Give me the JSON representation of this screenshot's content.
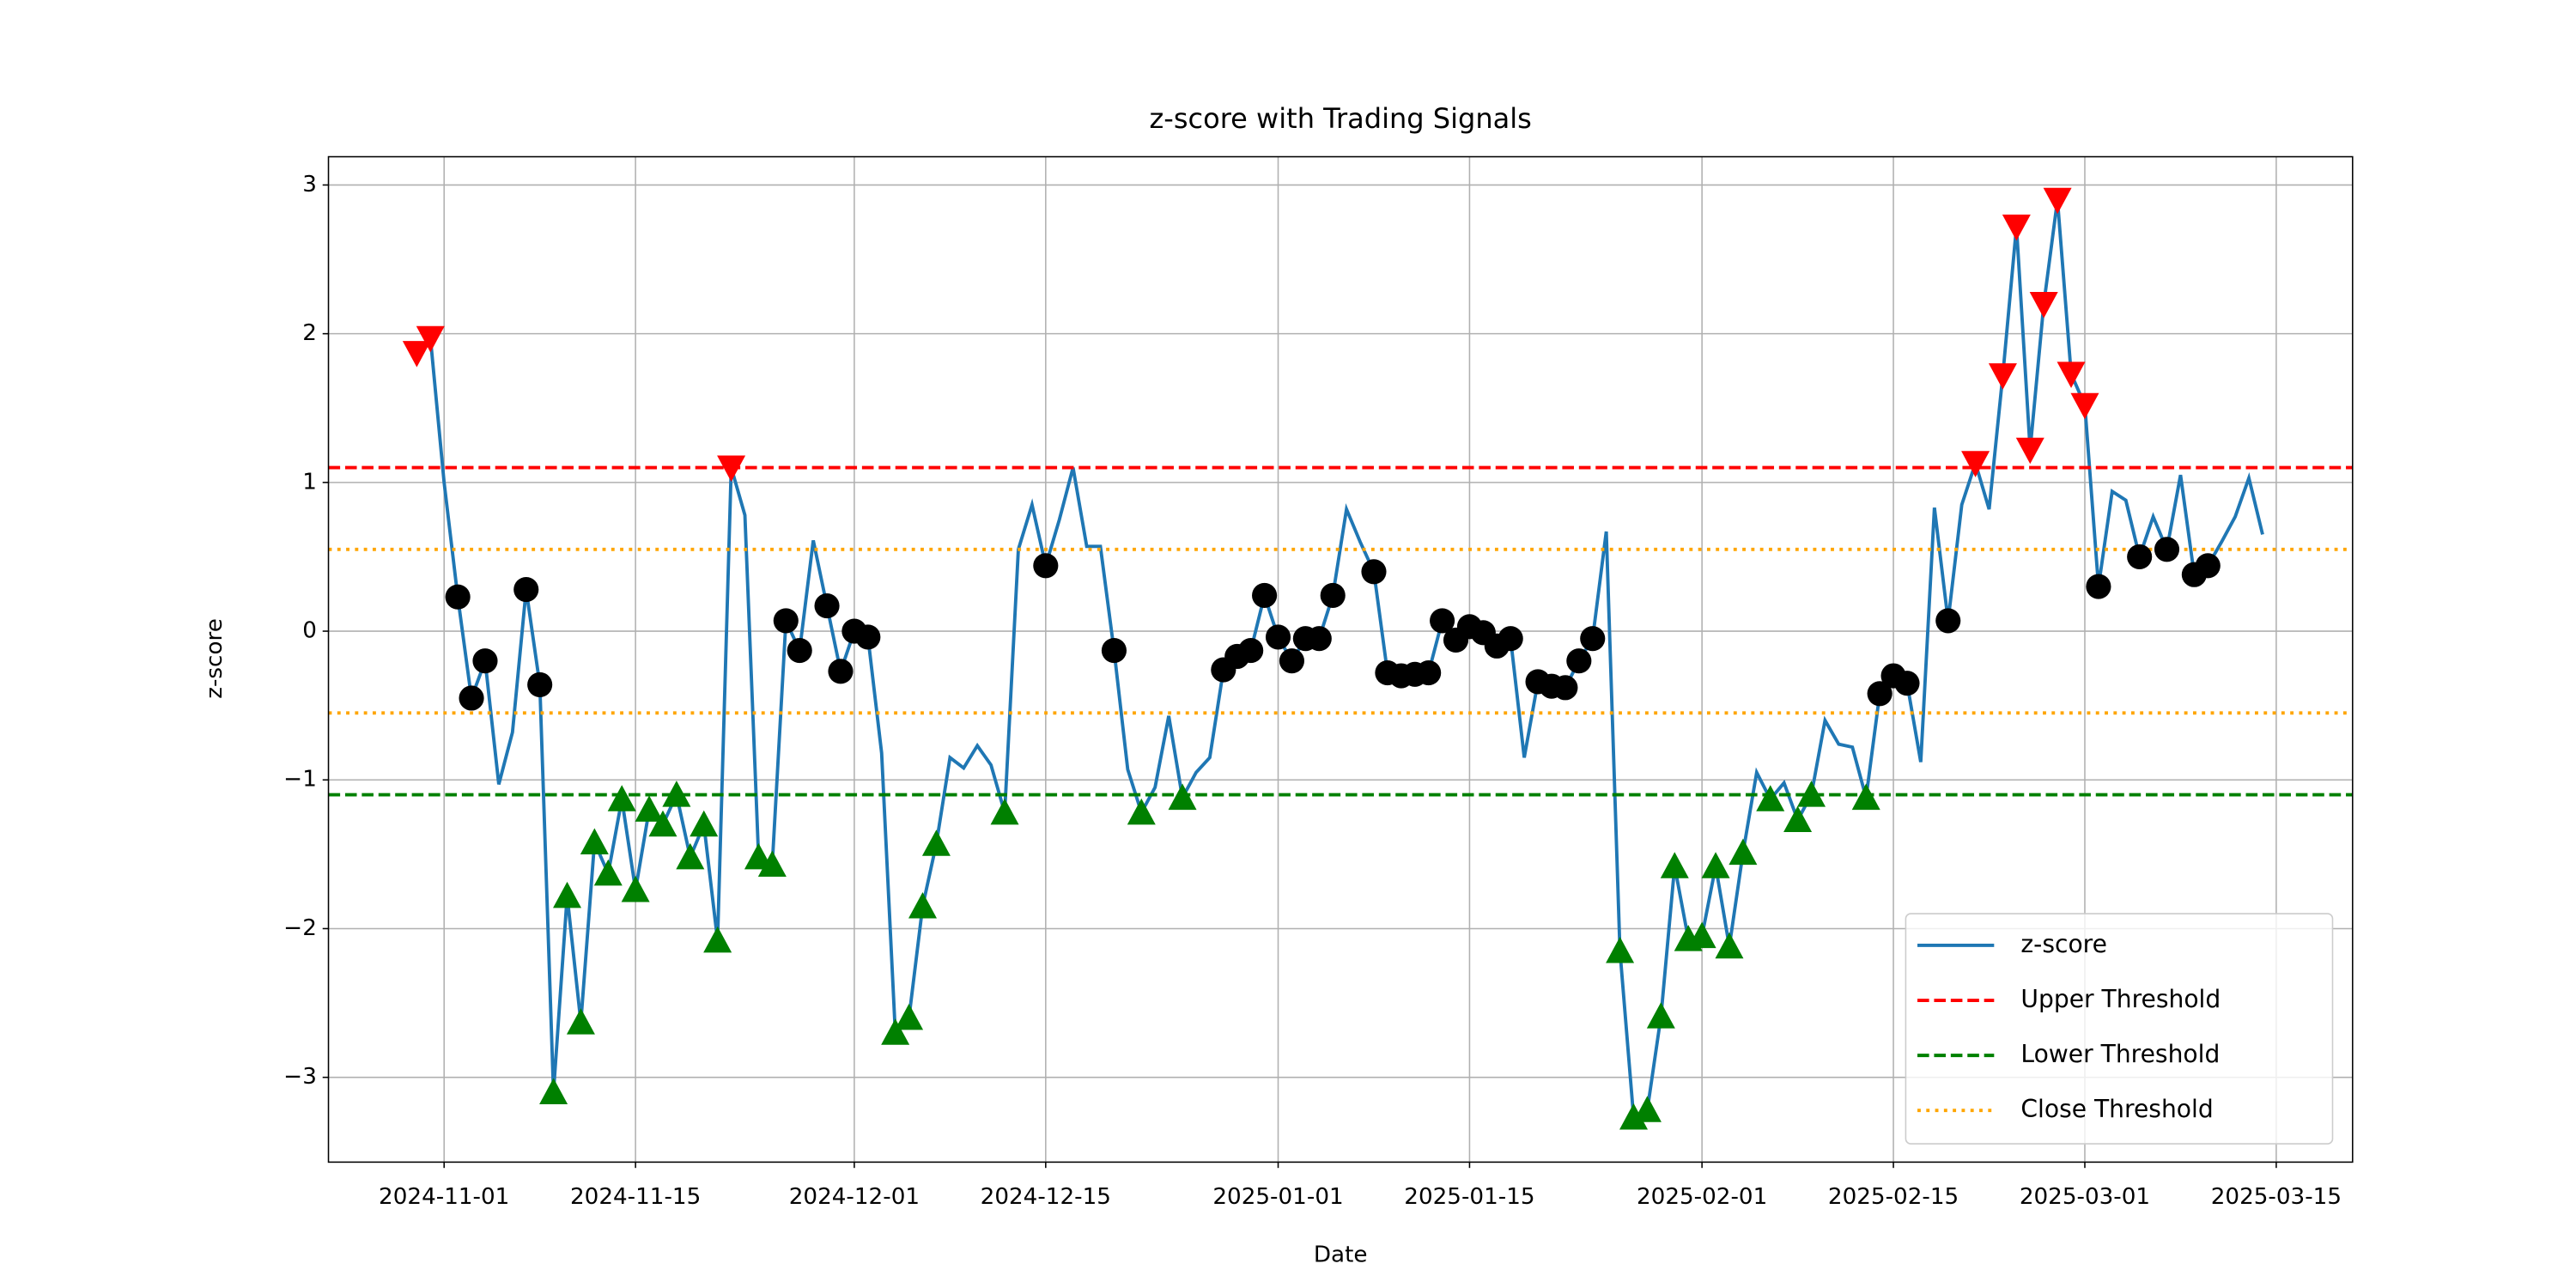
{
  "chart_data": {
    "type": "line",
    "title": "z-score with Trading Signals",
    "xlabel": "Date",
    "ylabel": "z-score",
    "x": [
      "2024-10-30",
      "2024-10-31",
      "2024-11-01",
      "2024-11-02",
      "2024-11-03",
      "2024-11-04",
      "2024-11-05",
      "2024-11-06",
      "2024-11-07",
      "2024-11-08",
      "2024-11-09",
      "2024-11-10",
      "2024-11-11",
      "2024-11-12",
      "2024-11-13",
      "2024-11-14",
      "2024-11-15",
      "2024-11-16",
      "2024-11-17",
      "2024-11-18",
      "2024-11-19",
      "2024-11-20",
      "2024-11-21",
      "2024-11-22",
      "2024-11-23",
      "2024-11-24",
      "2024-11-25",
      "2024-11-26",
      "2024-11-27",
      "2024-11-28",
      "2024-11-29",
      "2024-11-30",
      "2024-12-01",
      "2024-12-02",
      "2024-12-03",
      "2024-12-04",
      "2024-12-05",
      "2024-12-06",
      "2024-12-07",
      "2024-12-08",
      "2024-12-09",
      "2024-12-10",
      "2024-12-11",
      "2024-12-12",
      "2024-12-13",
      "2024-12-14",
      "2024-12-15",
      "2024-12-16",
      "2024-12-17",
      "2024-12-18",
      "2024-12-19",
      "2024-12-20",
      "2024-12-21",
      "2024-12-22",
      "2024-12-23",
      "2024-12-24",
      "2024-12-25",
      "2024-12-26",
      "2024-12-27",
      "2024-12-28",
      "2024-12-29",
      "2024-12-30",
      "2024-12-31",
      "2025-01-01",
      "2025-01-02",
      "2025-01-03",
      "2025-01-04",
      "2025-01-05",
      "2025-01-06",
      "2025-01-07",
      "2025-01-08",
      "2025-01-09",
      "2025-01-10",
      "2025-01-11",
      "2025-01-12",
      "2025-01-13",
      "2025-01-14",
      "2025-01-15",
      "2025-01-16",
      "2025-01-17",
      "2025-01-18",
      "2025-01-19",
      "2025-01-20",
      "2025-01-21",
      "2025-01-22",
      "2025-01-23",
      "2025-01-24",
      "2025-01-25",
      "2025-01-26",
      "2025-01-27",
      "2025-01-28",
      "2025-01-29",
      "2025-01-30",
      "2025-01-31",
      "2025-02-01",
      "2025-02-02",
      "2025-02-03",
      "2025-02-04",
      "2025-02-05",
      "2025-02-06",
      "2025-02-07",
      "2025-02-08",
      "2025-02-09",
      "2025-02-10",
      "2025-02-11",
      "2025-02-12",
      "2025-02-13",
      "2025-02-14",
      "2025-02-15",
      "2025-02-16",
      "2025-02-17",
      "2025-02-18",
      "2025-02-19",
      "2025-02-20",
      "2025-02-21",
      "2025-02-22",
      "2025-02-23",
      "2025-02-24",
      "2025-02-25",
      "2025-02-26",
      "2025-02-27",
      "2025-02-28",
      "2025-03-01",
      "2025-03-02",
      "2025-03-03",
      "2025-03-04",
      "2025-03-05",
      "2025-03-06",
      "2025-03-07",
      "2025-03-08",
      "2025-03-09",
      "2025-03-10",
      "2025-03-11",
      "2025-03-12",
      "2025-03-13",
      "2025-03-14"
    ],
    "series": [
      {
        "name": "z-score",
        "color": "#1f77b4",
        "values": [
          1.87,
          1.97,
          1.0,
          0.23,
          -0.45,
          -0.2,
          -1.03,
          -0.68,
          0.28,
          -0.36,
          -3.1,
          -1.78,
          -2.63,
          -1.42,
          -1.63,
          -1.13,
          -1.74,
          -1.2,
          -1.3,
          -1.1,
          -1.52,
          -1.3,
          -2.08,
          1.1,
          0.78,
          -1.52,
          -1.57,
          0.07,
          -0.13,
          0.61,
          0.17,
          -0.27,
          0.0,
          -0.04,
          -0.82,
          -2.7,
          -2.6,
          -1.85,
          -1.43,
          -0.85,
          -0.92,
          -0.77,
          -0.9,
          -1.22,
          0.55,
          0.85,
          0.44,
          0.75,
          1.1,
          0.57,
          0.57,
          -0.13,
          -0.93,
          -1.22,
          -1.05,
          -0.57,
          -1.12,
          -0.95,
          -0.85,
          -0.26,
          -0.17,
          -0.13,
          0.24,
          -0.04,
          -0.2,
          -0.05,
          -0.05,
          0.24,
          0.82,
          0.6,
          0.4,
          -0.28,
          -0.3,
          -0.29,
          -0.28,
          0.07,
          -0.06,
          0.03,
          -0.01,
          -0.1,
          -0.05,
          -0.85,
          -0.34,
          -0.37,
          -0.38,
          -0.2,
          -0.05,
          0.67,
          -2.15,
          -3.27,
          -3.22,
          -2.59,
          -1.58,
          -2.07,
          -2.05,
          -1.58,
          -2.12,
          -1.49,
          -0.95,
          -1.13,
          -1.02,
          -1.27,
          -1.1,
          -0.6,
          -0.76,
          -0.78,
          -1.12,
          -0.42,
          -0.3,
          -0.35,
          -0.88,
          0.83,
          0.07,
          0.85,
          1.13,
          0.82,
          1.72,
          2.72,
          1.22,
          2.2,
          2.9,
          1.73,
          1.52,
          0.3,
          0.94,
          0.88,
          0.5,
          0.77,
          0.55,
          1.05,
          0.38,
          0.44,
          0.6,
          0.77,
          1.03,
          0.65
        ]
      }
    ],
    "thresholds": [
      {
        "name": "Upper Threshold",
        "value": 1.1,
        "color": "#ff0000",
        "dash": "dashed"
      },
      {
        "name": "Lower Threshold",
        "value": -1.1,
        "color": "#008000",
        "dash": "dashed"
      },
      {
        "name": "Close Threshold",
        "value": 0.55,
        "color": "#ffa500",
        "dash": "dotted"
      },
      {
        "value": -0.55,
        "color": "#ffa500",
        "dash": "dotted"
      }
    ],
    "signals": [
      {
        "marker": "triangle-down",
        "color": "#ff0000",
        "x": [
          "2024-10-30",
          "2024-10-31",
          "2024-11-22",
          "2025-02-21",
          "2025-02-23",
          "2025-02-24",
          "2025-02-25",
          "2025-02-26",
          "2025-02-27",
          "2025-02-28",
          "2025-03-01"
        ],
        "values": [
          1.87,
          1.97,
          1.1,
          1.13,
          1.72,
          2.72,
          1.22,
          2.2,
          2.9,
          1.73,
          1.52
        ]
      },
      {
        "marker": "triangle-up",
        "color": "#008000",
        "x": [
          "2024-11-09",
          "2024-11-10",
          "2024-11-11",
          "2024-11-12",
          "2024-11-13",
          "2024-11-14",
          "2024-11-15",
          "2024-11-16",
          "2024-11-17",
          "2024-11-18",
          "2024-11-19",
          "2024-11-20",
          "2024-11-21",
          "2024-11-24",
          "2024-11-25",
          "2024-12-04",
          "2024-12-05",
          "2024-12-06",
          "2024-12-07",
          "2024-12-12",
          "2024-12-22",
          "2024-12-25",
          "2025-01-26",
          "2025-01-27",
          "2025-01-28",
          "2025-01-29",
          "2025-01-30",
          "2025-01-31",
          "2025-02-01",
          "2025-02-02",
          "2025-02-03",
          "2025-02-04",
          "2025-02-06",
          "2025-02-08",
          "2025-02-09",
          "2025-02-13"
        ],
        "values": [
          -3.1,
          -1.78,
          -2.63,
          -1.42,
          -1.63,
          -1.13,
          -1.74,
          -1.2,
          -1.3,
          -1.1,
          -1.52,
          -1.3,
          -2.08,
          -1.52,
          -1.57,
          -2.7,
          -2.6,
          -1.85,
          -1.43,
          -1.22,
          -1.22,
          -1.12,
          -2.15,
          -3.27,
          -3.22,
          -2.59,
          -1.58,
          -2.07,
          -2.05,
          -1.58,
          -2.12,
          -1.49,
          -1.13,
          -1.27,
          -1.1,
          -1.12
        ]
      },
      {
        "marker": "circle",
        "color": "#000000",
        "x": [
          "2024-11-02",
          "2024-11-03",
          "2024-11-04",
          "2024-11-07",
          "2024-11-08",
          "2024-11-26",
          "2024-11-27",
          "2024-11-29",
          "2024-11-30",
          "2024-12-01",
          "2024-12-02",
          "2024-12-15",
          "2024-12-20",
          "2024-12-28",
          "2024-12-29",
          "2024-12-30",
          "2024-12-31",
          "2025-01-01",
          "2025-01-02",
          "2025-01-03",
          "2025-01-04",
          "2025-01-05",
          "2025-01-08",
          "2025-01-09",
          "2025-01-10",
          "2025-01-11",
          "2025-01-12",
          "2025-01-13",
          "2025-01-14",
          "2025-01-15",
          "2025-01-16",
          "2025-01-17",
          "2025-01-18",
          "2025-01-20",
          "2025-01-21",
          "2025-01-22",
          "2025-01-23",
          "2025-01-24",
          "2025-02-14",
          "2025-02-15",
          "2025-02-16",
          "2025-02-19",
          "2025-03-02",
          "2025-03-05",
          "2025-03-07",
          "2025-03-09",
          "2025-03-10"
        ],
        "values": [
          0.23,
          -0.45,
          -0.2,
          0.28,
          -0.36,
          0.07,
          -0.13,
          0.17,
          -0.27,
          0.0,
          -0.04,
          0.44,
          -0.13,
          -0.26,
          -0.17,
          -0.13,
          0.24,
          -0.04,
          -0.2,
          -0.05,
          -0.05,
          0.24,
          0.4,
          -0.28,
          -0.3,
          -0.29,
          -0.28,
          0.07,
          -0.06,
          0.03,
          -0.01,
          -0.1,
          -0.05,
          -0.34,
          -0.37,
          -0.38,
          -0.2,
          -0.05,
          -0.42,
          -0.3,
          -0.35,
          0.07,
          0.3,
          0.5,
          0.55,
          0.38,
          0.44
        ]
      }
    ],
    "xlim": [
      "2024-10-23T13:00",
      "2025-03-20T14:00"
    ],
    "xticks": [
      "2024-11-01",
      "2024-11-15",
      "2024-12-01",
      "2024-12-15",
      "2025-01-01",
      "2025-01-15",
      "2025-02-01",
      "2025-02-15",
      "2025-03-01",
      "2025-03-15"
    ],
    "ylim": [
      -3.57,
      3.19
    ],
    "yticks": [
      {
        "value": -3,
        "label": "−3"
      },
      {
        "value": -2,
        "label": "−2"
      },
      {
        "value": -1,
        "label": "−1"
      },
      0,
      1,
      2,
      3
    ],
    "grid": true,
    "legend": "lower right"
  }
}
